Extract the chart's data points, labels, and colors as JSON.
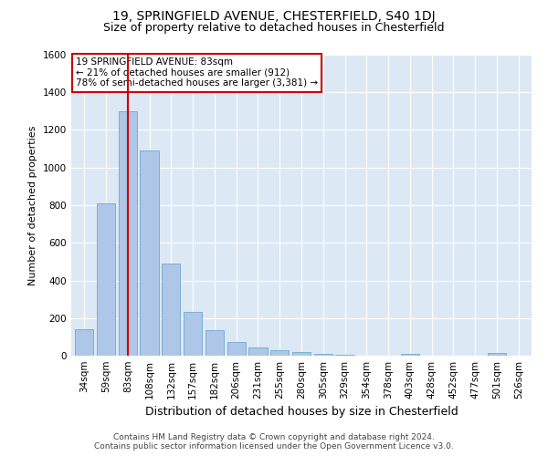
{
  "title1": "19, SPRINGFIELD AVENUE, CHESTERFIELD, S40 1DJ",
  "title2": "Size of property relative to detached houses in Chesterfield",
  "xlabel": "Distribution of detached houses by size in Chesterfield",
  "ylabel": "Number of detached properties",
  "categories": [
    "34sqm",
    "59sqm",
    "83sqm",
    "108sqm",
    "132sqm",
    "157sqm",
    "182sqm",
    "206sqm",
    "231sqm",
    "255sqm",
    "280sqm",
    "305sqm",
    "329sqm",
    "354sqm",
    "378sqm",
    "403sqm",
    "428sqm",
    "452sqm",
    "477sqm",
    "501sqm",
    "526sqm"
  ],
  "values": [
    140,
    810,
    1300,
    1090,
    490,
    235,
    135,
    75,
    43,
    27,
    18,
    8,
    4,
    2,
    1,
    12,
    1,
    0,
    1,
    14,
    0
  ],
  "bar_color": "#aec6e8",
  "bar_edge_color": "#7aafd4",
  "vline_x": 2,
  "vline_color": "#cc0000",
  "annotation_text": "19 SPRINGFIELD AVENUE: 83sqm\n← 21% of detached houses are smaller (912)\n78% of semi-detached houses are larger (3,381) →",
  "annotation_box_color": "#ffffff",
  "annotation_box_edge": "#cc0000",
  "ylim": [
    0,
    1600
  ],
  "yticks": [
    0,
    200,
    400,
    600,
    800,
    1000,
    1200,
    1400,
    1600
  ],
  "bg_color": "#dde8f5",
  "footer_text": "Contains HM Land Registry data © Crown copyright and database right 2024.\nContains public sector information licensed under the Open Government Licence v3.0.",
  "title1_fontsize": 10,
  "title2_fontsize": 9,
  "xlabel_fontsize": 9,
  "ylabel_fontsize": 8,
  "tick_fontsize": 7.5,
  "annot_fontsize": 7.5,
  "footer_fontsize": 6.5
}
